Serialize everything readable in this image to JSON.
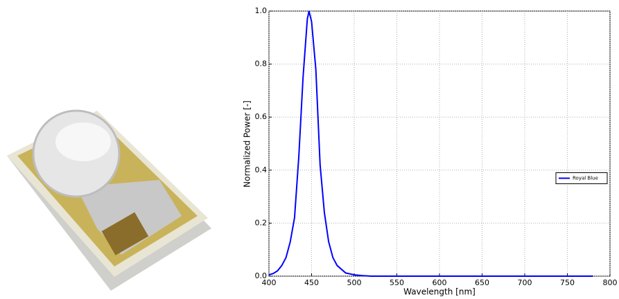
{
  "chart_data": {
    "type": "line",
    "x_label": "Wavelength [nm]",
    "y_label": "Normalized Power [-]",
    "x": [
      400,
      405,
      410,
      415,
      420,
      425,
      430,
      435,
      440,
      445,
      447,
      450,
      455,
      460,
      465,
      470,
      475,
      480,
      490,
      500,
      510,
      520,
      550,
      600,
      650,
      700,
      750,
      780
    ],
    "series": [
      {
        "name": "Royal Blue",
        "color": "#0000ff",
        "values": [
          0.005,
          0.01,
          0.02,
          0.04,
          0.07,
          0.13,
          0.22,
          0.45,
          0.75,
          0.97,
          1.0,
          0.96,
          0.78,
          0.42,
          0.24,
          0.13,
          0.07,
          0.04,
          0.012,
          0.005,
          0.002,
          0.0,
          0.0,
          0.0,
          0.0,
          0.0,
          0.0,
          0.0
        ]
      }
    ],
    "xlim": [
      400,
      800
    ],
    "ylim": [
      0,
      1
    ],
    "xticks": [
      400,
      450,
      500,
      550,
      600,
      650,
      700,
      750,
      800
    ],
    "yticks": [
      {
        "value": 0,
        "label": "0.0"
      },
      0.2,
      0.4,
      0.6,
      0.8,
      {
        "value": 1,
        "label": "1.0"
      }
    ],
    "grid": true,
    "legend": "right"
  }
}
